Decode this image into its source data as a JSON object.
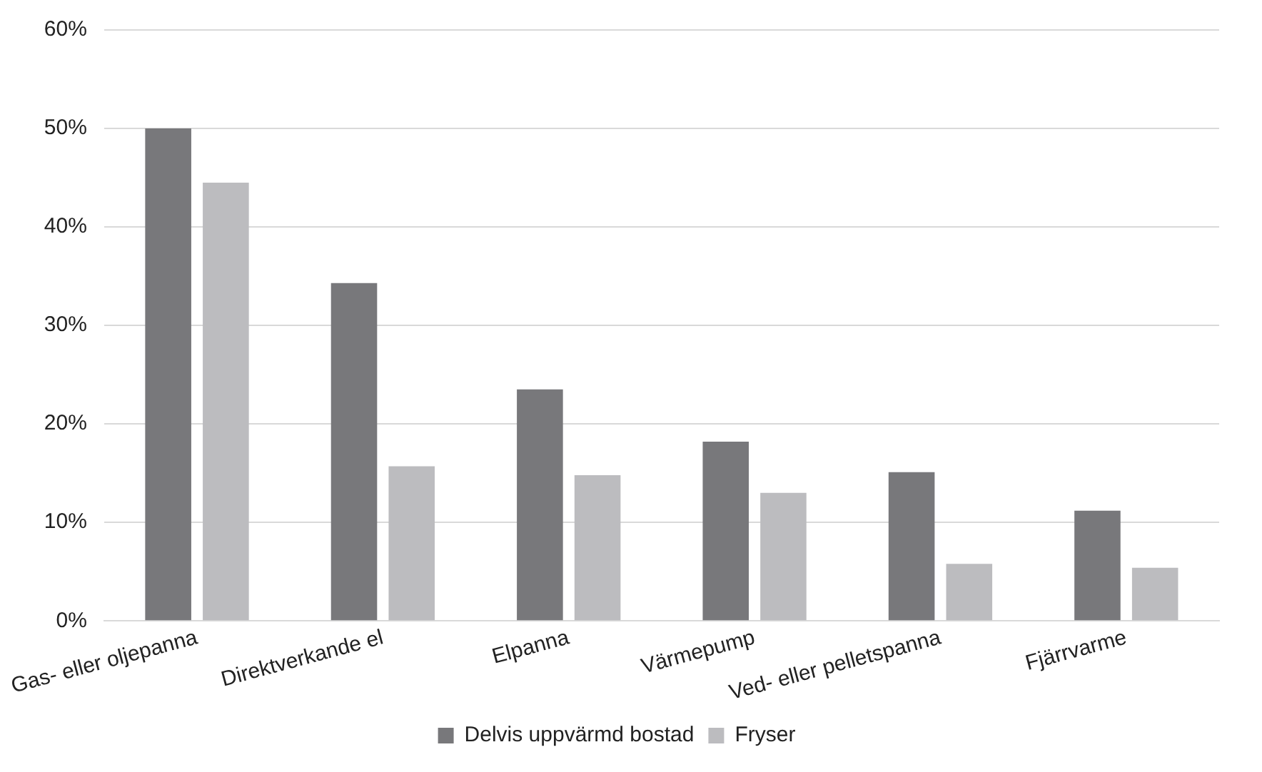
{
  "chart_data": {
    "type": "bar",
    "categories": [
      "Gas- eller oljepanna",
      "Direktverkande el",
      "Elpanna",
      "Värmepump",
      "Ved- eller pelletspanna",
      "Fjärrvarme"
    ],
    "series": [
      {
        "name": "Delvis uppvärmd bostad",
        "color": "#78787b",
        "values": [
          50,
          34.3,
          23.5,
          18.2,
          15.1,
          11.2
        ]
      },
      {
        "name": "Fryser",
        "color": "#bcbcbf",
        "values": [
          44.5,
          15.7,
          14.8,
          13,
          5.8,
          5.4
        ]
      }
    ],
    "ylim": [
      0,
      60
    ],
    "yticks": [
      {
        "value": 0,
        "label": "0%"
      },
      {
        "value": 10,
        "label": "10%"
      },
      {
        "value": 20,
        "label": "20%"
      },
      {
        "value": 30,
        "label": "30%"
      },
      {
        "value": 40,
        "label": "40%"
      },
      {
        "value": 50,
        "label": "50%"
      },
      {
        "value": 60,
        "label": "60%"
      }
    ],
    "grid": "y",
    "legend": "bottom"
  }
}
